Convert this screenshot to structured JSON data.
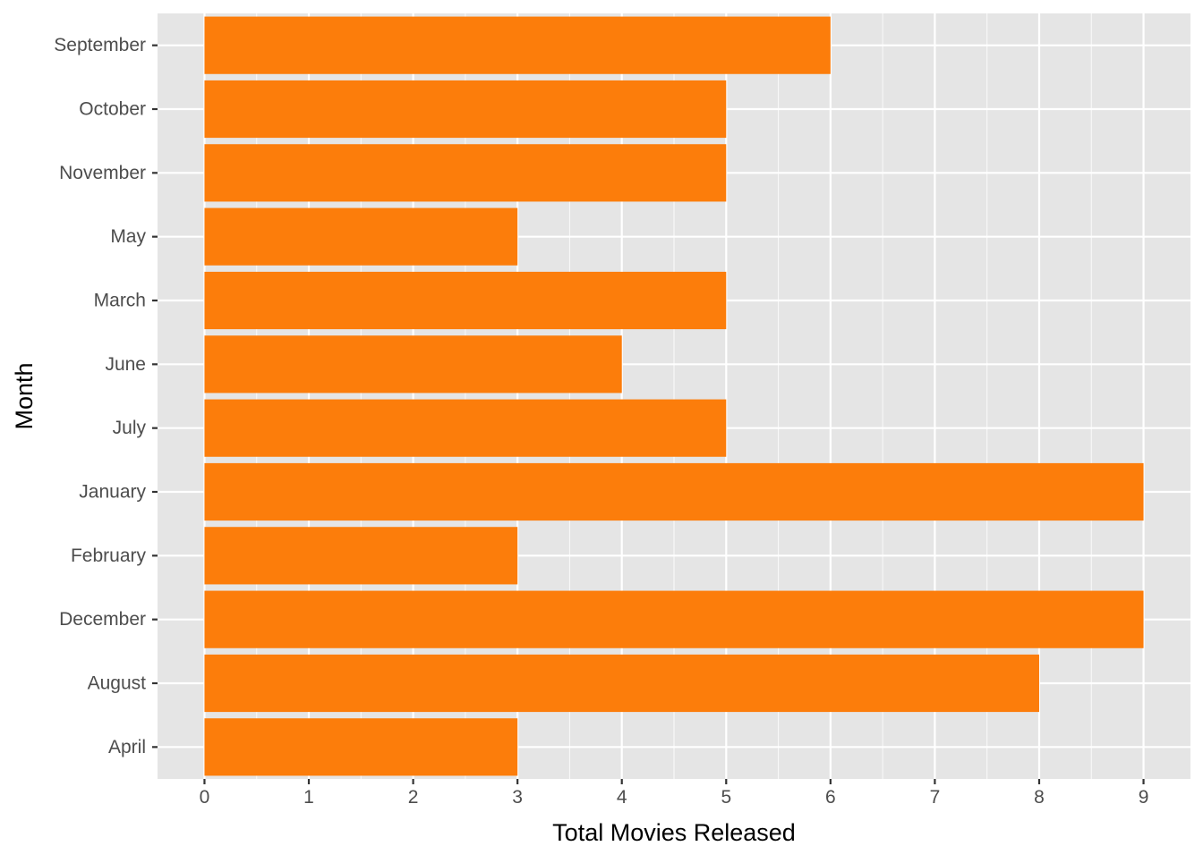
{
  "chart_data": {
    "type": "bar",
    "orientation": "horizontal",
    "title": "",
    "xlabel": "Total Movies Released",
    "ylabel": "Month",
    "categories": [
      "April",
      "August",
      "December",
      "February",
      "January",
      "July",
      "June",
      "March",
      "May",
      "November",
      "October",
      "September"
    ],
    "values": [
      3,
      8,
      9,
      3,
      9,
      5,
      4,
      5,
      3,
      5,
      5,
      6
    ],
    "xlim": [
      -0.45,
      9.45
    ],
    "xticks": [
      0,
      1,
      2,
      3,
      4,
      5,
      6,
      7,
      8,
      9
    ],
    "grid": true,
    "colors": {
      "bar": "#FC7D0B",
      "panel": "#E5E5E5",
      "grid_major": "#FFFFFF",
      "axis_text": "#4D4D4D",
      "axis_title": "#000000"
    }
  }
}
